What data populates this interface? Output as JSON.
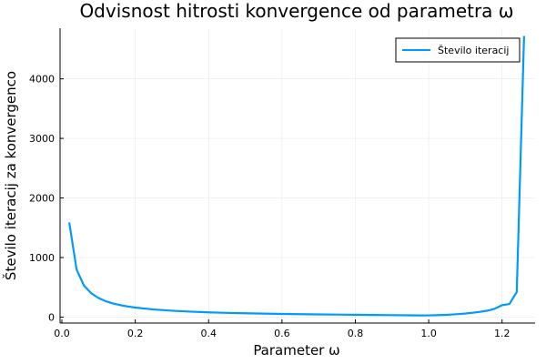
{
  "chart_data": {
    "type": "line",
    "title": "Odvisnost hitrosti konvergence od parametra ω",
    "xlabel": "Parameter ω",
    "ylabel": "Število iteracij za konvergenco",
    "xlim": [
      -0.005,
      1.29
    ],
    "ylim": [
      -100,
      4850
    ],
    "xticks": [
      0.0,
      0.2,
      0.4,
      0.6,
      0.8,
      1.0,
      1.2
    ],
    "xtick_labels": [
      "0.0",
      "0.2",
      "0.4",
      "0.6",
      "0.8",
      "1.0",
      "1.2"
    ],
    "yticks": [
      0,
      1000,
      2000,
      3000,
      4000
    ],
    "ytick_labels": [
      "0",
      "1000",
      "2000",
      "3000",
      "4000"
    ],
    "grid": true,
    "legend_position": "top-right",
    "color": "#009AFA",
    "series": [
      {
        "name": "Število iteracij",
        "x": [
          0.02,
          0.04,
          0.06,
          0.08,
          0.1,
          0.12,
          0.14,
          0.16,
          0.18,
          0.2,
          0.25,
          0.3,
          0.35,
          0.4,
          0.45,
          0.5,
          0.55,
          0.6,
          0.65,
          0.7,
          0.75,
          0.8,
          0.85,
          0.9,
          0.95,
          0.98,
          1.0,
          1.02,
          1.04,
          1.06,
          1.08,
          1.1,
          1.12,
          1.14,
          1.16,
          1.18,
          1.2,
          1.22,
          1.24,
          1.26
        ],
        "y": [
          1590,
          800,
          530,
          400,
          320,
          265,
          228,
          200,
          178,
          160,
          128,
          107,
          92,
          80,
          71,
          64,
          58,
          53,
          49,
          45,
          42,
          39,
          36,
          33,
          30,
          28,
          29,
          32,
          36,
          42,
          50,
          60,
          73,
          88,
          108,
          140,
          200,
          220,
          420,
          4720
        ]
      }
    ]
  }
}
